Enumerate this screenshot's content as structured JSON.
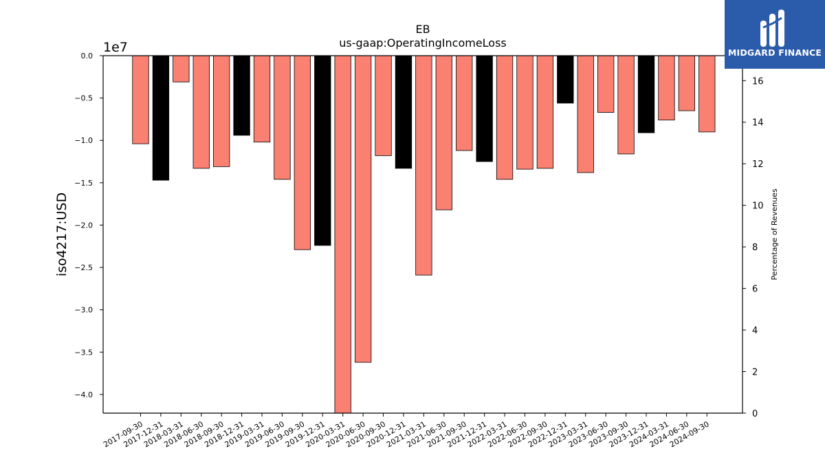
{
  "chart_data": {
    "type": "bar",
    "title": "EB",
    "subtitle": "us-gaap:OperatingIncomeLoss",
    "ylabel": "iso4217:USD",
    "y2label": "Percentage of Revenues",
    "scale_label": "1e7",
    "ylim": [
      -4.22,
      0
    ],
    "y2lim": [
      0,
      17.2
    ],
    "yticks": [
      "0.0",
      "−0.5",
      "−1.0",
      "−1.5",
      "−2.0",
      "−2.5",
      "−3.0",
      "−3.5",
      "−4.0"
    ],
    "ytick_values": [
      0,
      -0.5,
      -1.0,
      -1.5,
      -2.0,
      -2.5,
      -3.0,
      -3.5,
      -4.0
    ],
    "y2ticks": [
      "0",
      "2",
      "4",
      "6",
      "8",
      "10",
      "12",
      "14",
      "16"
    ],
    "y2tick_values": [
      0,
      2,
      4,
      6,
      8,
      10,
      12,
      14,
      16
    ],
    "categories": [
      "2017-09-30",
      "2017-12-31",
      "2018-03-31",
      "2018-06-30",
      "2018-09-30",
      "2018-12-31",
      "2019-03-31",
      "2019-06-30",
      "2019-09-30",
      "2019-12-31",
      "2020-03-31",
      "2020-06-30",
      "2020-09-30",
      "2020-12-31",
      "2021-03-31",
      "2021-06-30",
      "2021-09-30",
      "2021-12-31",
      "2022-03-31",
      "2022-06-30",
      "2022-09-30",
      "2022-12-31",
      "2023-03-31",
      "2023-06-30",
      "2023-09-30",
      "2023-12-31",
      "2024-03-31",
      "2024-06-30",
      "2024-09-30"
    ],
    "values": [
      -1.04,
      -1.47,
      -0.31,
      -1.33,
      -1.31,
      -0.94,
      -1.02,
      -1.46,
      -2.29,
      -2.24,
      -4.24,
      -3.62,
      -1.18,
      -1.33,
      -2.59,
      -1.82,
      -1.12,
      -1.25,
      -1.46,
      -1.34,
      -1.33,
      -0.56,
      -1.38,
      -0.67,
      -1.16,
      -0.91,
      -0.76,
      -0.65,
      -0.9
    ],
    "bar_colors": [
      "#fa8072",
      "#000000",
      "#fa8072",
      "#fa8072",
      "#fa8072",
      "#000000",
      "#fa8072",
      "#fa8072",
      "#fa8072",
      "#000000",
      "#fa8072",
      "#fa8072",
      "#fa8072",
      "#000000",
      "#fa8072",
      "#fa8072",
      "#fa8072",
      "#000000",
      "#fa8072",
      "#fa8072",
      "#fa8072",
      "#000000",
      "#fa8072",
      "#fa8072",
      "#fa8072",
      "#000000",
      "#fa8072",
      "#fa8072",
      "#fa8072"
    ],
    "grid": false,
    "legend": "none"
  },
  "logo": {
    "text": "MIDGARD FINANCE",
    "background": "#2b5bab",
    "icon": "midgard-logo-icon"
  }
}
